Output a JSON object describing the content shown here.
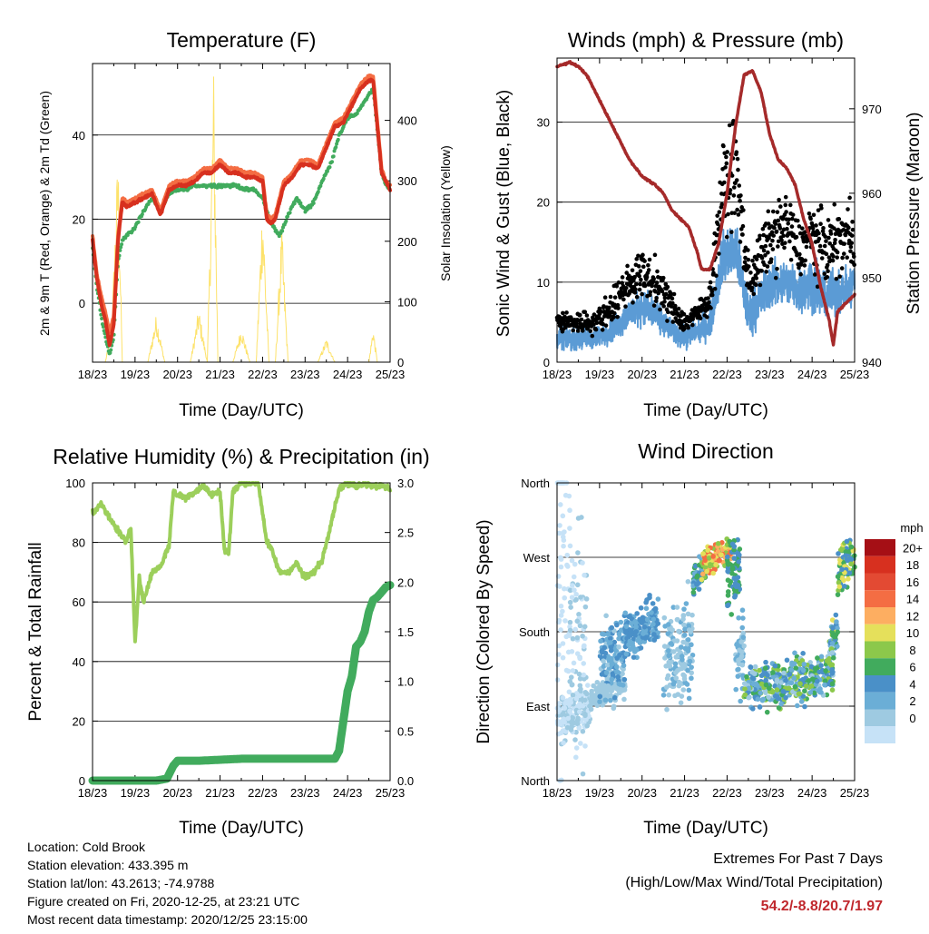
{
  "chart_data": [
    {
      "id": "temperature",
      "type": "line",
      "title": "Temperature (F)",
      "xlabel": "Time (Day/UTC)",
      "ylabel": "2m & 9m T (Red, Orange) & 2m Td (Green)",
      "ylabel_right": "Solar Insolation (Yellow)",
      "x_ticks": [
        "18/23",
        "19/23",
        "20/23",
        "21/23",
        "22/23",
        "23/23",
        "24/23",
        "25/23"
      ],
      "x_range": [
        0,
        7
      ],
      "ylim": [
        -14,
        57
      ],
      "ylim_right": [
        0,
        494
      ],
      "y_ticks": [
        0,
        20,
        40
      ],
      "y_ticks_right": [
        0,
        100,
        200,
        300,
        400
      ],
      "grid_y": [
        0,
        20,
        40
      ],
      "series": [
        {
          "name": "2m T",
          "color": "#d7301f",
          "x": [
            0,
            0.1,
            0.2,
            0.3,
            0.4,
            0.5,
            0.6,
            0.7,
            0.8,
            1.0,
            1.2,
            1.4,
            1.6,
            1.8,
            2.0,
            2.2,
            2.4,
            2.6,
            2.8,
            3.0,
            3.2,
            3.4,
            3.6,
            3.8,
            4.0,
            4.1,
            4.2,
            4.3,
            4.5,
            4.7,
            4.9,
            5.1,
            5.3,
            5.5,
            5.7,
            5.9,
            6.1,
            6.3,
            6.5,
            6.6,
            6.7,
            6.8,
            6.9,
            7.0
          ],
          "values": [
            15,
            6,
            0,
            -4,
            -10,
            -5,
            15,
            24,
            23,
            24,
            25,
            26,
            21,
            27,
            28,
            28,
            29,
            31,
            31,
            33,
            31,
            31,
            30,
            30,
            29,
            20,
            19,
            20,
            28,
            30,
            33,
            33,
            32,
            37,
            42,
            43,
            47,
            51,
            53,
            53,
            42,
            31,
            29,
            27
          ]
        },
        {
          "name": "9m T",
          "color": "#f46d43",
          "x": [
            0,
            0.1,
            0.2,
            0.3,
            0.4,
            0.5,
            0.6,
            0.7,
            0.8,
            1.0,
            1.2,
            1.4,
            1.6,
            1.8,
            2.0,
            2.2,
            2.4,
            2.6,
            2.8,
            3.0,
            3.2,
            3.4,
            3.6,
            3.8,
            4.0,
            4.1,
            4.2,
            4.3,
            4.5,
            4.7,
            4.9,
            5.1,
            5.3,
            5.5,
            5.7,
            5.9,
            6.1,
            6.3,
            6.5,
            6.6,
            6.7,
            6.8,
            6.9,
            7.0
          ],
          "values": [
            16,
            7,
            2,
            -2,
            -7,
            -3,
            16,
            25,
            24,
            25,
            26,
            27,
            22,
            28,
            29,
            29,
            30,
            32,
            32,
            34,
            32,
            32,
            31,
            31,
            30,
            21,
            20,
            21,
            29,
            31,
            34,
            34,
            33,
            38,
            43,
            44,
            48,
            52,
            54,
            54,
            43,
            32,
            29,
            28
          ]
        },
        {
          "name": "2m Td",
          "color": "#41ab5d",
          "x": [
            0,
            0.1,
            0.2,
            0.3,
            0.4,
            0.5,
            0.6,
            0.7,
            0.8,
            1.0,
            1.2,
            1.4,
            1.6,
            1.8,
            2.0,
            2.2,
            2.4,
            2.6,
            2.8,
            3.0,
            3.2,
            3.4,
            3.6,
            3.8,
            4.0,
            4.2,
            4.4,
            4.6,
            4.8,
            5.0,
            5.2,
            5.4,
            5.6,
            5.8,
            6.0,
            6.2,
            6.4,
            6.6,
            6.7,
            6.8,
            6.9,
            7.0
          ],
          "values": [
            13,
            4,
            -3,
            -8,
            -12,
            -8,
            10,
            15,
            16,
            18,
            22,
            25,
            22,
            26,
            27,
            27,
            28,
            28,
            28,
            28,
            28,
            28,
            27,
            27,
            25,
            19,
            16,
            21,
            25,
            22,
            24,
            29,
            33,
            40,
            44,
            45,
            48,
            51,
            41,
            31,
            28,
            27
          ]
        },
        {
          "name": "Solar",
          "color": "#fde26a",
          "axis": "right",
          "x": [
            0.3,
            0.45,
            0.6,
            0.7,
            0.8,
            0.95,
            1.3,
            1.5,
            1.7,
            2.3,
            2.5,
            2.7,
            2.85,
            2.95,
            3.05,
            3.3,
            3.5,
            3.7,
            3.85,
            4.0,
            4.15,
            4.3,
            4.45,
            4.6,
            4.8,
            5.3,
            5.5,
            5.7,
            6.3,
            6.5,
            6.6,
            6.7,
            6.85,
            7.0
          ],
          "values": [
            0,
            60,
            360,
            0,
            0,
            0,
            0,
            80,
            0,
            0,
            90,
            0,
            490,
            0,
            0,
            0,
            60,
            0,
            0,
            280,
            0,
            0,
            230,
            0,
            0,
            0,
            40,
            0,
            0,
            0,
            60,
            0,
            0,
            0
          ]
        }
      ]
    },
    {
      "id": "winds",
      "type": "scatter",
      "title": "Winds (mph) & Pressure (mb)",
      "xlabel": "Time (Day/UTC)",
      "ylabel": "Sonic Wind & Gust (Blue, Black)",
      "ylabel_right": "Station Pressure (Maroon)",
      "x_ticks": [
        "18/23",
        "19/23",
        "20/23",
        "21/23",
        "22/23",
        "23/23",
        "24/23",
        "25/23"
      ],
      "x_range": [
        0,
        7
      ],
      "ylim": [
        0,
        38
      ],
      "ylim_right": [
        940,
        976
      ],
      "y_ticks": [
        0,
        10,
        20,
        30
      ],
      "y_ticks_right": [
        940,
        950,
        960,
        970
      ],
      "grid_y": [
        10,
        20,
        30
      ],
      "wind_envelope": {
        "name": "Sonic Wind",
        "color": "#5b9bd5",
        "x": [
          0,
          0.5,
          0.9,
          1.3,
          1.7,
          2.0,
          2.3,
          2.7,
          3.0,
          3.3,
          3.6,
          3.9,
          4.2,
          4.5,
          4.8,
          5.1,
          5.4,
          5.7,
          6.0,
          6.3,
          6.6,
          6.9,
          7.0
        ],
        "mean": [
          3,
          3,
          3,
          4,
          6,
          7,
          6,
          4,
          3,
          4,
          5,
          13,
          14,
          6,
          8,
          10,
          10,
          9,
          10,
          8,
          9,
          9,
          11
        ],
        "spread": [
          2,
          2,
          2,
          2,
          3,
          3,
          3,
          2,
          2,
          2,
          3,
          5,
          5,
          4,
          4,
          4,
          4,
          4,
          5,
          4,
          4,
          4,
          3
        ]
      },
      "gust_envelope": {
        "name": "Gust",
        "color": "#000000",
        "x": [
          0,
          0.5,
          0.9,
          1.3,
          1.7,
          2.0,
          2.3,
          2.7,
          3.0,
          3.3,
          3.6,
          3.9,
          4.2,
          4.5,
          4.8,
          5.1,
          5.4,
          5.7,
          6.0,
          6.3,
          6.6,
          6.9,
          7.0
        ],
        "mean": [
          5,
          5,
          5,
          7,
          10,
          11,
          10,
          7,
          5,
          6,
          8,
          22,
          24,
          10,
          13,
          16,
          17,
          14,
          16,
          14,
          15,
          16,
          15
        ],
        "spread": [
          2,
          2,
          2,
          3,
          4,
          4,
          4,
          3,
          2,
          2,
          3,
          8,
          9,
          5,
          5,
          6,
          6,
          5,
          6,
          6,
          6,
          6,
          4
        ]
      },
      "pressure": {
        "name": "Station Pressure",
        "color": "#a52a2a",
        "x": [
          0,
          0.3,
          0.5,
          0.7,
          1.0,
          1.3,
          1.7,
          2.0,
          2.3,
          2.5,
          2.7,
          2.9,
          3.1,
          3.3,
          3.4,
          3.6,
          3.8,
          4.0,
          4.2,
          4.4,
          4.6,
          4.8,
          5.0,
          5.2,
          5.4,
          5.6,
          5.8,
          6.0,
          6.2,
          6.4,
          6.5,
          6.6,
          6.7,
          6.8,
          7.0
        ],
        "values": [
          975,
          975.5,
          975,
          974,
          971,
          968,
          964,
          962,
          961,
          960,
          958,
          957,
          956,
          953,
          951,
          951,
          954,
          960,
          968,
          974,
          974.5,
          972,
          967,
          964,
          963,
          961,
          957,
          954,
          949,
          945,
          942,
          946,
          946.5,
          947,
          948
        ]
      }
    },
    {
      "id": "humidity",
      "type": "line",
      "title": "Relative Humidity (%) & Precipitation (in)",
      "xlabel": "Time (Day/UTC)",
      "ylabel": "Percent & Total Rainfall",
      "x_ticks": [
        "18/23",
        "19/23",
        "20/23",
        "21/23",
        "22/23",
        "23/23",
        "24/23",
        "25/23"
      ],
      "x_range": [
        0,
        7
      ],
      "ylim": [
        0,
        100
      ],
      "ylim_right": [
        0,
        3.0
      ],
      "y_ticks": [
        0,
        20,
        40,
        60,
        80,
        100
      ],
      "y_ticks_right": [
        0.0,
        0.5,
        1.0,
        1.5,
        2.0,
        2.5,
        3.0
      ],
      "y_tick_labels_right": [
        "0.0",
        "0.5",
        "1.0",
        "1.5",
        "2.0",
        "2.5",
        "3.0"
      ],
      "grid_y": [
        20,
        40,
        60,
        80
      ],
      "series": [
        {
          "name": "RH",
          "color": "#9ccf5b",
          "x": [
            0,
            0.2,
            0.4,
            0.6,
            0.8,
            0.9,
            1.0,
            1.1,
            1.2,
            1.4,
            1.6,
            1.8,
            1.9,
            2.0,
            2.2,
            2.4,
            2.6,
            2.8,
            3.0,
            3.1,
            3.2,
            3.3,
            3.5,
            3.7,
            3.9,
            4.1,
            4.2,
            4.4,
            4.6,
            4.8,
            5.0,
            5.2,
            5.4,
            5.6,
            5.8,
            6.0,
            6.2,
            6.4,
            6.6,
            6.8,
            7.0
          ],
          "values": [
            90,
            93,
            88,
            84,
            80,
            85,
            47,
            68,
            60,
            70,
            72,
            79,
            97,
            96,
            95,
            97,
            99,
            96,
            97,
            78,
            76,
            97,
            100,
            100,
            100,
            80,
            78,
            70,
            70,
            73,
            68,
            70,
            74,
            86,
            98,
            100,
            99,
            100,
            99,
            99,
            98
          ]
        },
        {
          "name": "Total Rainfall",
          "color": "#41ab5d",
          "axis": "right",
          "x": [
            0,
            0.5,
            1.0,
            1.5,
            1.75,
            1.9,
            2.0,
            2.5,
            3.0,
            3.5,
            4.0,
            4.5,
            5.0,
            5.5,
            5.7,
            5.8,
            5.9,
            6.0,
            6.1,
            6.2,
            6.3,
            6.4,
            6.5,
            6.6,
            6.7,
            6.8,
            6.9,
            7.0
          ],
          "values": [
            0,
            0,
            0,
            0,
            0.02,
            0.15,
            0.2,
            0.2,
            0.21,
            0.22,
            0.22,
            0.22,
            0.22,
            0.22,
            0.22,
            0.3,
            0.6,
            0.9,
            1.05,
            1.35,
            1.4,
            1.5,
            1.7,
            1.82,
            1.85,
            1.9,
            1.95,
            1.97
          ]
        }
      ]
    },
    {
      "id": "wind_direction",
      "type": "scatter",
      "title": "Wind Direction",
      "xlabel": "Time (Day/UTC)",
      "ylabel": "Direction (Colored By Speed)",
      "x_ticks": [
        "18/23",
        "19/23",
        "20/23",
        "21/23",
        "22/23",
        "23/23",
        "24/23",
        "25/23"
      ],
      "x_range": [
        0,
        7
      ],
      "ylim": [
        0,
        360
      ],
      "y_ticks": [
        0,
        90,
        180,
        270,
        360
      ],
      "y_tick_labels": [
        "North",
        "East",
        "South",
        "West",
        "North"
      ],
      "grid_y": [
        90,
        180,
        270
      ],
      "clusters": [
        {
          "x": [
            0,
            0.8
          ],
          "dir": [
            80,
            40
          ],
          "speed": [
            1,
            3
          ]
        },
        {
          "x": [
            0,
            0.3
          ],
          "dir": [
            240,
            360
          ],
          "speed": [
            0,
            2
          ]
        },
        {
          "x": [
            0.3,
            0.7
          ],
          "dir": [
            160,
            200
          ],
          "speed": [
            1,
            4
          ]
        },
        {
          "x": [
            0.8,
            1.6
          ],
          "dir": [
            110,
            30
          ],
          "speed": [
            2,
            4
          ]
        },
        {
          "x": [
            1.0,
            1.6
          ],
          "dir": [
            150,
            70
          ],
          "speed": [
            3,
            8
          ]
        },
        {
          "x": [
            1.6,
            2.4
          ],
          "dir": [
            185,
            40
          ],
          "speed": [
            4,
            8
          ]
        },
        {
          "x": [
            2.5,
            3.2
          ],
          "dir": [
            155,
            90
          ],
          "speed": [
            2,
            5
          ]
        },
        {
          "x": [
            3.2,
            3.5
          ],
          "dir": [
            250,
            30
          ],
          "speed": [
            4,
            10
          ]
        },
        {
          "x": [
            3.4,
            4.1
          ],
          "dir": [
            270,
            25
          ],
          "speed": [
            10,
            18
          ]
        },
        {
          "x": [
            4.0,
            4.3
          ],
          "dir": [
            250,
            60
          ],
          "speed": [
            6,
            10
          ]
        },
        {
          "x": [
            4.2,
            4.4
          ],
          "dir": [
            150,
            60
          ],
          "speed": [
            3,
            6
          ]
        },
        {
          "x": [
            4.4,
            6.5
          ],
          "dir": [
            120,
            40
          ],
          "speed": [
            3,
            12
          ]
        },
        {
          "x": [
            6.4,
            6.6
          ],
          "dir": [
            170,
            40
          ],
          "speed": [
            3,
            13
          ]
        },
        {
          "x": [
            6.6,
            7.0
          ],
          "dir": [
            260,
            40
          ],
          "speed": [
            6,
            14
          ]
        }
      ],
      "colorbar": {
        "title": "mph",
        "labels": [
          "20+",
          "18",
          "16",
          "14",
          "12",
          "10",
          "8",
          "6",
          "4",
          "2",
          "0"
        ],
        "colors": [
          "#a50f15",
          "#d7301f",
          "#e34a33",
          "#f46d43",
          "#fdae61",
          "#e5e05b",
          "#8cc84b",
          "#41ab5d",
          "#4a90c8",
          "#6baed6",
          "#9ecae1",
          "#c6e2f7"
        ]
      }
    }
  ],
  "info": {
    "location": "Location: Cold Brook",
    "elevation": "Station elevation: 433.395 m",
    "latlon": "Station lat/lon: 43.2613; -74.9788",
    "created": "Figure created on Fri, 2020-12-25, at 23:21 UTC",
    "recent": "Most recent data timestamp: 2020/12/25 23:15:00"
  },
  "extremes": {
    "title": "Extremes For Past 7 Days",
    "subtitle": "(High/Low/Max Wind/Total Precipitation)",
    "values": "54.2/-8.8/20.7/1.97"
  }
}
